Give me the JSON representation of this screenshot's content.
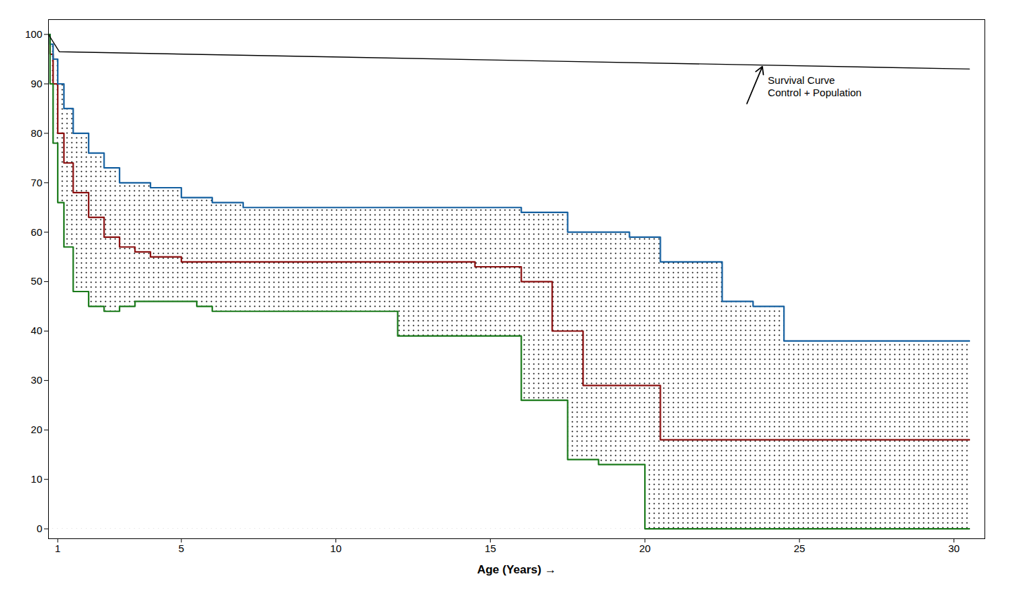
{
  "chart_data": {
    "type": "line",
    "xlabel": "Age (Years)",
    "xlim": [
      0.7,
      31
    ],
    "ylim": [
      -2,
      103
    ],
    "xticks": [
      1,
      5,
      10,
      15,
      20,
      25,
      30
    ],
    "yticks": [
      0,
      10,
      20,
      30,
      40,
      50,
      60,
      70,
      80,
      90,
      100
    ],
    "series": [
      {
        "type": "line",
        "line_style": "step",
        "color": "#8B1010",
        "x": [
          0.7,
          0.75,
          0.85,
          1.0,
          1.2,
          1.5,
          2.0,
          2.5,
          3.0,
          3.5,
          4.0,
          5.0,
          6.0,
          7.0,
          12.0,
          14.5,
          16.0,
          17.0,
          18.0,
          19.0,
          20.5,
          22.5,
          23.5,
          30.5
        ],
        "values": [
          100,
          96,
          90,
          80,
          74,
          68,
          63,
          59,
          57,
          56,
          55,
          54,
          54,
          54,
          54,
          53,
          50,
          40,
          29,
          29,
          18,
          18,
          18,
          18
        ]
      },
      {
        "type": "band",
        "line_style": "step",
        "upper_color": "#1560A0",
        "x_upper": [
          0.7,
          0.75,
          0.85,
          1.0,
          1.2,
          1.5,
          2.0,
          2.5,
          3.0,
          4.0,
          5.0,
          6.0,
          7.0,
          12.0,
          14.0,
          16.0,
          17.5,
          19.5,
          20.5,
          22.5,
          23.5,
          24.5,
          30.5
        ],
        "upper": [
          100,
          98,
          95,
          90,
          85,
          80,
          76,
          73,
          70,
          69,
          67,
          66,
          65,
          65,
          65,
          64,
          60,
          59,
          54,
          46,
          45,
          38,
          38
        ],
        "lower_color": "#1A7A1A",
        "x_lower": [
          0.7,
          0.75,
          0.85,
          1.0,
          1.2,
          1.5,
          2.0,
          2.5,
          3.0,
          3.5,
          4.0,
          5.0,
          5.5,
          6.0,
          12.0,
          14.5,
          16.0,
          17.5,
          18.5,
          19.5,
          20.0,
          23.5,
          24.0,
          30.5
        ],
        "lower": [
          100,
          90,
          78,
          66,
          57,
          48,
          45,
          44,
          45,
          46,
          46,
          46,
          45,
          44,
          39,
          39,
          26,
          14,
          13,
          13,
          0,
          0,
          0,
          0
        ]
      },
      {
        "type": "line",
        "line_style": "solid",
        "color": "#000000",
        "x": [
          0.7,
          1.05,
          30.5
        ],
        "values": [
          100,
          96.5,
          93
        ]
      }
    ],
    "annotations": [
      {
        "text": "Survival Curve\nControl + Population",
        "x": 23.8,
        "y": 93.5,
        "x_tail": 23.3,
        "y_tail": 86
      }
    ]
  }
}
